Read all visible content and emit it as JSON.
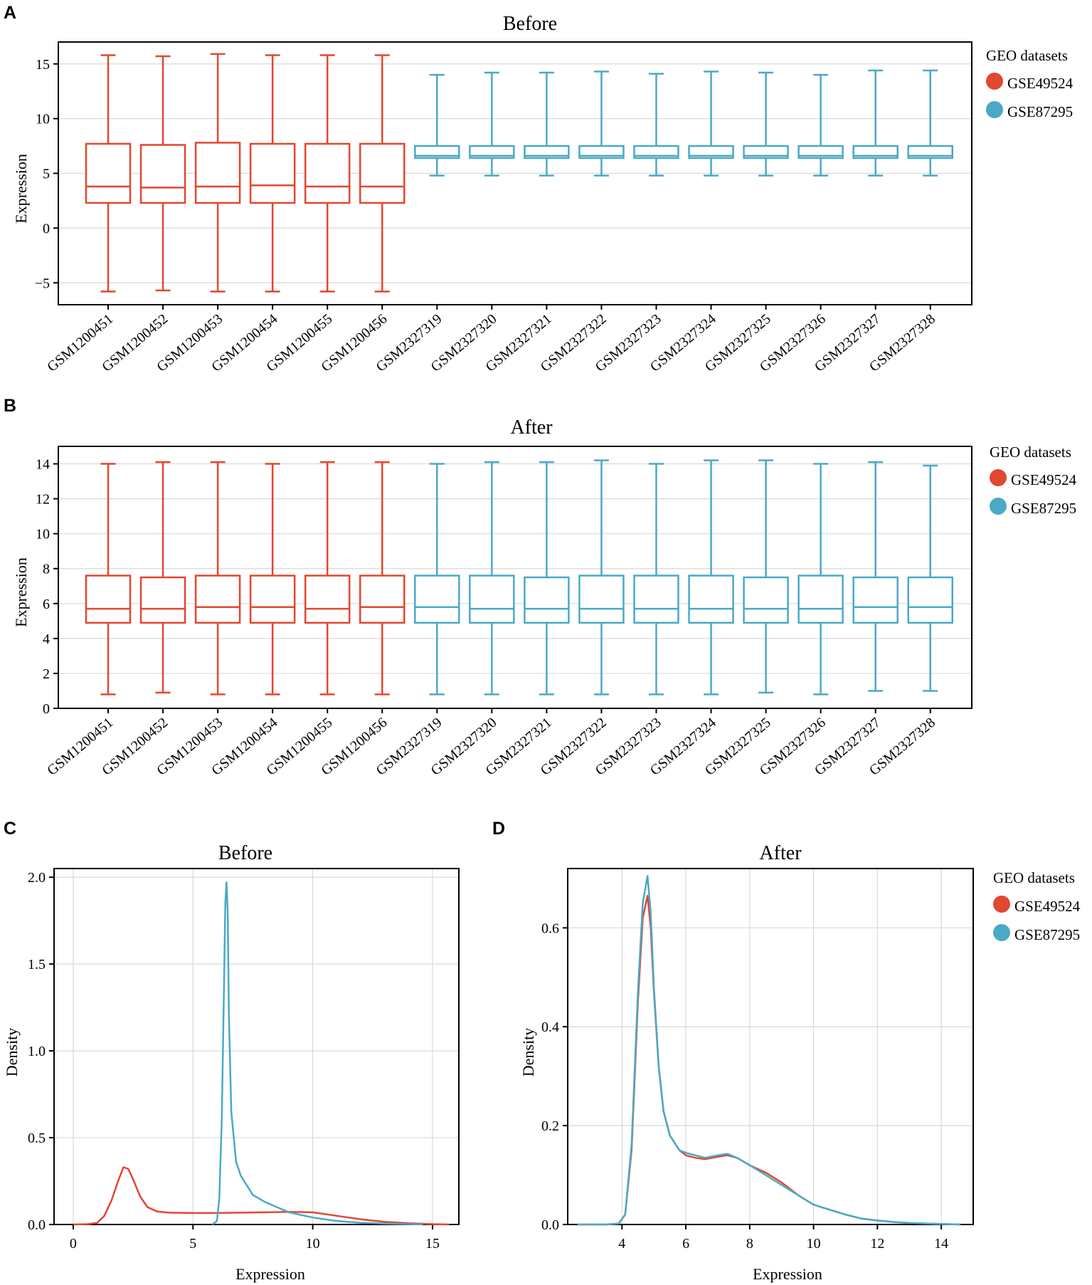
{
  "panels": {
    "A": {
      "letter": "A"
    },
    "B": {
      "letter": "B"
    },
    "C": {
      "letter": "C"
    },
    "D": {
      "letter": "D"
    }
  },
  "legend": {
    "title": "GEO datasets",
    "items": [
      {
        "label": "GSE49524",
        "color": "#e2472f"
      },
      {
        "label": "GSE87295",
        "color": "#4aa9c6"
      }
    ]
  },
  "chart_data": [
    {
      "id": "A",
      "type": "box",
      "title": "Before",
      "ylabel": "Expression",
      "xlabel": "",
      "ylim": [
        -7,
        17
      ],
      "yticks": [
        -5,
        0,
        5,
        10,
        15
      ],
      "ytick_labels": [
        "−5",
        "0",
        "5",
        "10",
        "15"
      ],
      "grid": true,
      "categories": [
        "GSM1200451",
        "GSM1200452",
        "GSM1200453",
        "GSM1200454",
        "GSM1200455",
        "GSM1200456",
        "GSM2327319",
        "GSM2327320",
        "GSM2327321",
        "GSM2327322",
        "GSM2327323",
        "GSM2327324",
        "GSM2327325",
        "GSM2327326",
        "GSM2327327",
        "GSM2327328"
      ],
      "groups": [
        "GSE49524",
        "GSE49524",
        "GSE49524",
        "GSE49524",
        "GSE49524",
        "GSE49524",
        "GSE87295",
        "GSE87295",
        "GSE87295",
        "GSE87295",
        "GSE87295",
        "GSE87295",
        "GSE87295",
        "GSE87295",
        "GSE87295",
        "GSE87295"
      ],
      "boxes": [
        {
          "min": -5.8,
          "q1": 2.3,
          "median": 3.8,
          "q3": 7.7,
          "max": 15.8
        },
        {
          "min": -5.7,
          "q1": 2.3,
          "median": 3.7,
          "q3": 7.6,
          "max": 15.7
        },
        {
          "min": -5.8,
          "q1": 2.3,
          "median": 3.8,
          "q3": 7.8,
          "max": 15.9
        },
        {
          "min": -5.8,
          "q1": 2.3,
          "median": 3.9,
          "q3": 7.7,
          "max": 15.8
        },
        {
          "min": -5.8,
          "q1": 2.3,
          "median": 3.8,
          "q3": 7.7,
          "max": 15.8
        },
        {
          "min": -5.8,
          "q1": 2.3,
          "median": 3.8,
          "q3": 7.7,
          "max": 15.8
        },
        {
          "min": 4.8,
          "q1": 6.4,
          "median": 6.6,
          "q3": 7.5,
          "max": 14.0
        },
        {
          "min": 4.8,
          "q1": 6.4,
          "median": 6.6,
          "q3": 7.5,
          "max": 14.2
        },
        {
          "min": 4.8,
          "q1": 6.4,
          "median": 6.6,
          "q3": 7.5,
          "max": 14.2
        },
        {
          "min": 4.8,
          "q1": 6.4,
          "median": 6.6,
          "q3": 7.5,
          "max": 14.3
        },
        {
          "min": 4.8,
          "q1": 6.4,
          "median": 6.6,
          "q3": 7.5,
          "max": 14.1
        },
        {
          "min": 4.8,
          "q1": 6.4,
          "median": 6.6,
          "q3": 7.5,
          "max": 14.3
        },
        {
          "min": 4.8,
          "q1": 6.4,
          "median": 6.6,
          "q3": 7.5,
          "max": 14.2
        },
        {
          "min": 4.8,
          "q1": 6.4,
          "median": 6.6,
          "q3": 7.5,
          "max": 14.0
        },
        {
          "min": 4.8,
          "q1": 6.4,
          "median": 6.6,
          "q3": 7.5,
          "max": 14.4
        },
        {
          "min": 4.8,
          "q1": 6.4,
          "median": 6.6,
          "q3": 7.5,
          "max": 14.4
        }
      ]
    },
    {
      "id": "B",
      "type": "box",
      "title": "After",
      "ylabel": "Expression",
      "xlabel": "",
      "ylim": [
        0,
        15
      ],
      "yticks": [
        0,
        2,
        4,
        6,
        8,
        10,
        12,
        14
      ],
      "ytick_labels": [
        "0",
        "2",
        "4",
        "6",
        "8",
        "10",
        "12",
        "14"
      ],
      "grid": true,
      "categories": [
        "GSM1200451",
        "GSM1200452",
        "GSM1200453",
        "GSM1200454",
        "GSM1200455",
        "GSM1200456",
        "GSM2327319",
        "GSM2327320",
        "GSM2327321",
        "GSM2327322",
        "GSM2327323",
        "GSM2327324",
        "GSM2327325",
        "GSM2327326",
        "GSM2327327",
        "GSM2327328"
      ],
      "groups": [
        "GSE49524",
        "GSE49524",
        "GSE49524",
        "GSE49524",
        "GSE49524",
        "GSE49524",
        "GSE87295",
        "GSE87295",
        "GSE87295",
        "GSE87295",
        "GSE87295",
        "GSE87295",
        "GSE87295",
        "GSE87295",
        "GSE87295",
        "GSE87295"
      ],
      "boxes": [
        {
          "min": 0.8,
          "q1": 4.9,
          "median": 5.7,
          "q3": 7.6,
          "max": 14.0
        },
        {
          "min": 0.9,
          "q1": 4.9,
          "median": 5.7,
          "q3": 7.5,
          "max": 14.1
        },
        {
          "min": 0.8,
          "q1": 4.9,
          "median": 5.8,
          "q3": 7.6,
          "max": 14.1
        },
        {
          "min": 0.8,
          "q1": 4.9,
          "median": 5.8,
          "q3": 7.6,
          "max": 14.0
        },
        {
          "min": 0.8,
          "q1": 4.9,
          "median": 5.7,
          "q3": 7.6,
          "max": 14.1
        },
        {
          "min": 0.8,
          "q1": 4.9,
          "median": 5.8,
          "q3": 7.6,
          "max": 14.1
        },
        {
          "min": 0.8,
          "q1": 4.9,
          "median": 5.8,
          "q3": 7.6,
          "max": 14.0
        },
        {
          "min": 0.8,
          "q1": 4.9,
          "median": 5.7,
          "q3": 7.6,
          "max": 14.1
        },
        {
          "min": 0.8,
          "q1": 4.9,
          "median": 5.7,
          "q3": 7.5,
          "max": 14.1
        },
        {
          "min": 0.8,
          "q1": 4.9,
          "median": 5.7,
          "q3": 7.6,
          "max": 14.2
        },
        {
          "min": 0.8,
          "q1": 4.9,
          "median": 5.7,
          "q3": 7.6,
          "max": 14.0
        },
        {
          "min": 0.8,
          "q1": 4.9,
          "median": 5.7,
          "q3": 7.6,
          "max": 14.2
        },
        {
          "min": 0.9,
          "q1": 4.9,
          "median": 5.7,
          "q3": 7.5,
          "max": 14.2
        },
        {
          "min": 0.8,
          "q1": 4.9,
          "median": 5.7,
          "q3": 7.6,
          "max": 14.0
        },
        {
          "min": 1.0,
          "q1": 4.9,
          "median": 5.8,
          "q3": 7.5,
          "max": 14.1
        },
        {
          "min": 1.0,
          "q1": 4.9,
          "median": 5.8,
          "q3": 7.5,
          "max": 13.9
        }
      ]
    },
    {
      "id": "C",
      "type": "line",
      "title": "Before",
      "xlabel": "Expression",
      "ylabel": "Density",
      "xlim": [
        -0.8,
        16.1
      ],
      "ylim": [
        0,
        2.05
      ],
      "xticks": [
        0,
        5,
        10,
        15
      ],
      "yticks": [
        0.0,
        0.5,
        1.0,
        1.5,
        2.0
      ],
      "ytick_labels": [
        "0.0",
        "0.5",
        "1.0",
        "1.5",
        "2.0"
      ],
      "grid": true,
      "series": [
        {
          "name": "GSE49524",
          "x": [
            0,
            0.6,
            1.0,
            1.3,
            1.6,
            1.9,
            2.1,
            2.3,
            2.5,
            2.8,
            3.1,
            3.5,
            4.0,
            5.0,
            6.0,
            7.0,
            8.0,
            9.0,
            10.0,
            11.0,
            12.0,
            13.0,
            14.0,
            15.0,
            15.7
          ],
          "y": [
            0,
            0.002,
            0.01,
            0.05,
            0.14,
            0.26,
            0.33,
            0.32,
            0.26,
            0.16,
            0.1,
            0.075,
            0.068,
            0.066,
            0.066,
            0.068,
            0.07,
            0.073,
            0.07,
            0.05,
            0.03,
            0.015,
            0.007,
            0.002,
            0
          ]
        },
        {
          "name": "GSE87295",
          "x": [
            5.8,
            6.0,
            6.1,
            6.2,
            6.3,
            6.35,
            6.4,
            6.45,
            6.5,
            6.6,
            6.8,
            7.0,
            7.5,
            8.0,
            9.0,
            10.0,
            11.0,
            12.0,
            13.0,
            14.0,
            14.6
          ],
          "y": [
            0,
            0.02,
            0.15,
            0.6,
            1.4,
            1.85,
            1.97,
            1.8,
            1.2,
            0.65,
            0.36,
            0.28,
            0.17,
            0.13,
            0.07,
            0.04,
            0.02,
            0.01,
            0.005,
            0.002,
            0
          ]
        }
      ]
    },
    {
      "id": "D",
      "type": "line",
      "title": "After",
      "xlabel": "Expression",
      "ylabel": "Density",
      "xlim": [
        2.3,
        15.0
      ],
      "ylim": [
        0,
        0.72
      ],
      "xticks": [
        4,
        6,
        8,
        10,
        12,
        14
      ],
      "yticks": [
        0.0,
        0.2,
        0.4,
        0.6
      ],
      "ytick_labels": [
        "0.0",
        "0.2",
        "0.4",
        "0.6"
      ],
      "grid": true,
      "series": [
        {
          "name": "GSE49524",
          "x": [
            2.6,
            3.5,
            3.9,
            4.1,
            4.3,
            4.5,
            4.65,
            4.8,
            4.9,
            5.0,
            5.15,
            5.3,
            5.5,
            5.8,
            6.0,
            6.3,
            6.6,
            7.0,
            7.3,
            7.6,
            8.0,
            8.5,
            9.0,
            9.5,
            10.0,
            10.5,
            11.0,
            11.5,
            12.0,
            12.5,
            13.0,
            13.5,
            14.0,
            14.6
          ],
          "y": [
            0,
            0,
            0.002,
            0.02,
            0.15,
            0.45,
            0.62,
            0.665,
            0.6,
            0.47,
            0.32,
            0.23,
            0.18,
            0.15,
            0.14,
            0.135,
            0.132,
            0.137,
            0.14,
            0.135,
            0.12,
            0.105,
            0.085,
            0.06,
            0.04,
            0.03,
            0.02,
            0.012,
            0.008,
            0.005,
            0.003,
            0.002,
            0.001,
            0
          ]
        },
        {
          "name": "GSE87295",
          "x": [
            2.6,
            3.5,
            3.9,
            4.1,
            4.3,
            4.5,
            4.65,
            4.8,
            4.9,
            5.0,
            5.15,
            5.3,
            5.5,
            5.8,
            6.0,
            6.3,
            6.6,
            7.0,
            7.3,
            7.6,
            8.0,
            8.5,
            9.0,
            9.5,
            10.0,
            10.5,
            11.0,
            11.5,
            12.0,
            12.5,
            13.0,
            13.5,
            14.0,
            14.6
          ],
          "y": [
            0,
            0,
            0.002,
            0.02,
            0.16,
            0.47,
            0.65,
            0.705,
            0.63,
            0.48,
            0.32,
            0.23,
            0.18,
            0.15,
            0.145,
            0.14,
            0.135,
            0.14,
            0.143,
            0.135,
            0.12,
            0.1,
            0.08,
            0.06,
            0.04,
            0.03,
            0.02,
            0.012,
            0.008,
            0.005,
            0.003,
            0.002,
            0.001,
            0
          ]
        }
      ]
    }
  ]
}
